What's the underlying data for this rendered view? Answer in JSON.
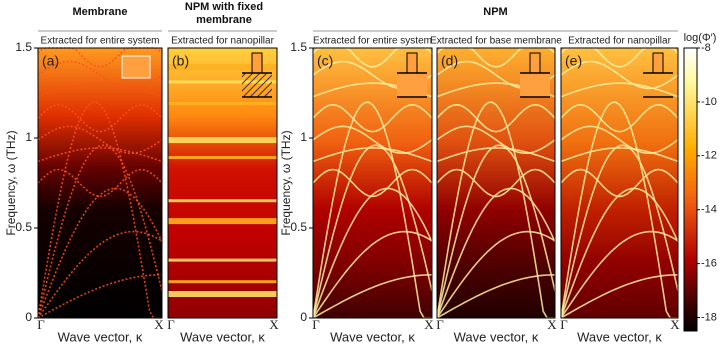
{
  "groups": [
    {
      "title": "Membrane"
    },
    {
      "title": "NPM with fixed membrane"
    },
    {
      "title": "NPM"
    }
  ],
  "chart_data": [
    {
      "type": "heatmap",
      "title": "Extracted for entire system",
      "panel": "(a)",
      "ylabel": "Frequency, ω (THz)",
      "xlabel": "Wave vector, κ",
      "categories": [
        "Γ",
        "X"
      ],
      "ylim": [
        0,
        1.5
      ],
      "yticks": [
        0,
        0.5,
        1,
        1.5
      ]
    },
    {
      "type": "heatmap",
      "title": "Extracted for nanopillar",
      "panel": "(b)",
      "xlabel": "Wave vector, κ",
      "categories": [
        "Γ",
        "X"
      ],
      "ylim": [
        0,
        1.5
      ]
    },
    {
      "type": "heatmap",
      "title": "Extracted for entire system",
      "panel": "(c)",
      "ylabel": "Frequency, ω (THz)",
      "xlabel": "Wave vector, κ",
      "categories": [
        "Γ",
        "X"
      ],
      "ylim": [
        0,
        1.5
      ],
      "yticks": [
        0,
        0.5,
        1,
        1.5
      ]
    },
    {
      "type": "heatmap",
      "title": "Extracted for base membrane",
      "panel": "(d)",
      "xlabel": "Wave vector, κ",
      "categories": [
        "Γ",
        "X"
      ],
      "ylim": [
        0,
        1.5
      ]
    },
    {
      "type": "heatmap",
      "title": "Extracted for nanopillar",
      "panel": "(e)",
      "xlabel": "Wave vector, κ",
      "categories": [
        "Γ",
        "X"
      ],
      "ylim": [
        0,
        1.5
      ]
    }
  ],
  "colorbar": {
    "label": "log(Φ′)",
    "lim": [
      -18.5,
      -8
    ],
    "ticks": [
      -8,
      -10,
      -12,
      -14,
      -16,
      -18
    ]
  }
}
